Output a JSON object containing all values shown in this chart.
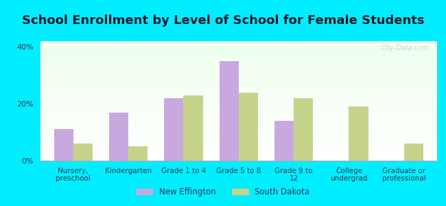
{
  "title": "School Enrollment by Level of School for Female Students",
  "categories": [
    "Nursery,\npreschool",
    "Kindergarten",
    "Grade 1 to 4",
    "Grade 5 to 8",
    "Grade 9 to\n12",
    "College\nundergrad",
    "Graduate or\nprofessional"
  ],
  "new_effington": [
    11,
    17,
    22,
    35,
    14,
    0,
    0
  ],
  "south_dakota": [
    6,
    5,
    23,
    24,
    22,
    19,
    6
  ],
  "bar_color_ne": "#c9a8e0",
  "bar_color_sd": "#c5d48a",
  "bg_color": "#00eeff",
  "ylabel_ticks": [
    0,
    20,
    40
  ],
  "ylabel_labels": [
    "0%",
    "20%",
    "40%"
  ],
  "ylim": [
    0,
    42
  ],
  "legend_ne": "New Effington",
  "legend_sd": "South Dakota",
  "title_fontsize": 13,
  "watermark": "City-Data.com",
  "title_color": "#1a1a2e",
  "tick_color": "#333355"
}
